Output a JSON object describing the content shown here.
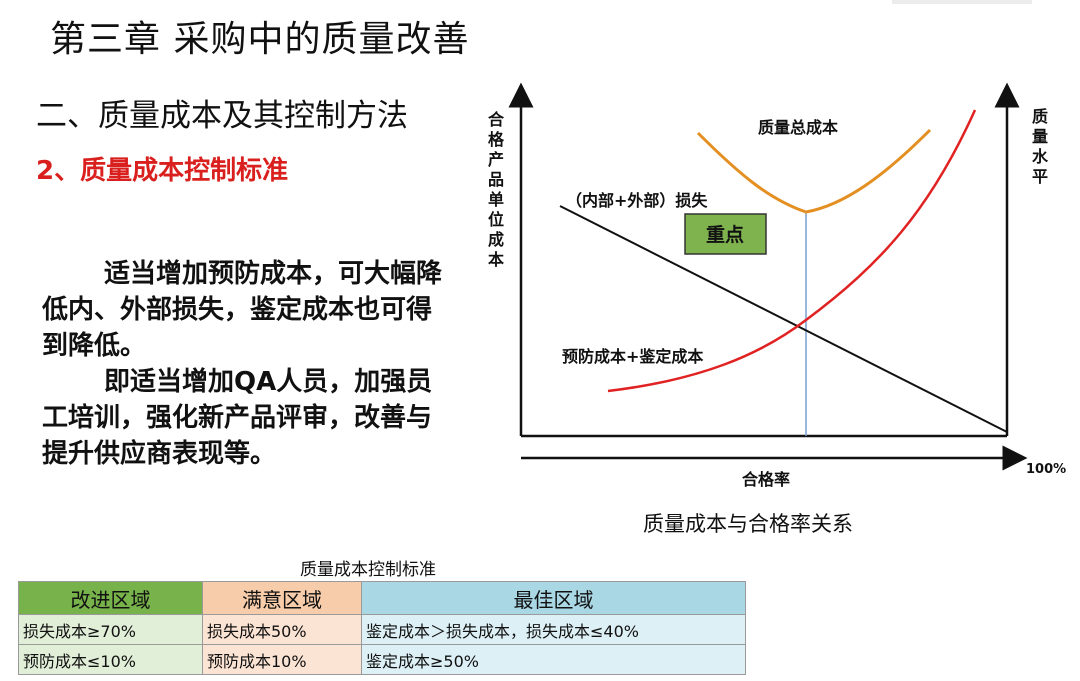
{
  "title": "第三章  采购中的质量改善",
  "section_heading": "二、质量成本及其控制方法",
  "sub_heading": "2、质量成本控制标准",
  "body": {
    "para1": "适当增加预防成本，可大幅降低内、外部损失，鉴定成本也可得到降低。",
    "para2": "即适当增加QA人员，加强员工培训，强化新产品评审，改善与提升供应商表现等。"
  },
  "chart": {
    "y_left_label": "合格产品单位成本",
    "y_right_label": "质量水平",
    "x_label": "合格率",
    "x_end_label": "100%",
    "curve_total_label": "质量总成本",
    "curve_loss_label": "（内部+外部）损失",
    "curve_prevention_label": "预防成本+鉴定成本",
    "focus_box_label": "重点",
    "caption": "质量成本与合格率关系",
    "colors": {
      "total_cost": "#e48f22",
      "prevention": "#e02222",
      "loss": "#111111",
      "focus_box": "#7fb34e",
      "optimum_line": "#7a9fd0"
    }
  },
  "table": {
    "title": "质量成本控制标准",
    "headers": [
      "改进区域",
      "满意区域",
      "最佳区域"
    ],
    "rows": [
      [
        "损失成本≥70%",
        "损失成本50%",
        "鉴定成本＞损失成本，损失成本≤40%"
      ],
      [
        "预防成本≤10%",
        "预防成本10%",
        "鉴定成本≥50%"
      ]
    ],
    "colors": {
      "col1": "#77b24a",
      "col2": "#f7ccaa",
      "col3": "#a9d7e4"
    }
  }
}
